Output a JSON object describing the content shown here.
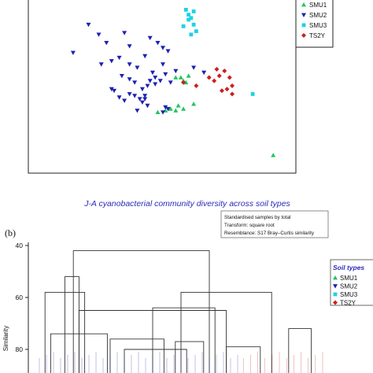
{
  "figure": {
    "background": "#ffffff"
  },
  "chart_data": [
    {
      "type": "scatter",
      "panel_label": "",
      "legend": [
        {
          "name": "SMU1",
          "marker": "triangle-up",
          "color": "#22c55e"
        },
        {
          "name": "SMU2",
          "marker": "triangle-down",
          "color": "#1e22b0"
        },
        {
          "name": "SMU3",
          "marker": "square",
          "color": "#19d3e6"
        },
        {
          "name": "TS2Y",
          "marker": "diamond",
          "color": "#cc1f1f"
        }
      ],
      "grid": false,
      "xlim": [
        0,
        100
      ],
      "ylim": [
        0,
        100
      ],
      "series": [
        {
          "name": "SMU1",
          "points": [
            [
              55,
              55
            ],
            [
              57,
              55
            ],
            [
              58,
              53
            ],
            [
              59,
              52
            ],
            [
              60,
              56
            ],
            [
              48,
              34
            ],
            [
              53,
              36
            ],
            [
              55,
              35
            ],
            [
              56,
              38
            ],
            [
              58,
              36
            ],
            [
              62,
              39
            ],
            [
              51,
              35
            ],
            [
              93,
              8
            ]
          ]
        },
        {
          "name": "SMU2",
          "points": [
            [
              21,
              87
            ],
            [
              25,
              81
            ],
            [
              28,
              76
            ],
            [
              33,
              67
            ],
            [
              35,
              82
            ],
            [
              37,
              74
            ],
            [
              15,
              70
            ],
            [
              26,
              63
            ],
            [
              30,
              65
            ],
            [
              37,
              63
            ],
            [
              40,
              61
            ],
            [
              43,
              68
            ],
            [
              45,
              79
            ],
            [
              46,
              58
            ],
            [
              48,
              76
            ],
            [
              50,
              73
            ],
            [
              52,
              71
            ],
            [
              50,
              63
            ],
            [
              34,
              56
            ],
            [
              37,
              54
            ],
            [
              39,
              52
            ],
            [
              42,
              48
            ],
            [
              43,
              44
            ],
            [
              43,
              42
            ],
            [
              44,
              50
            ],
            [
              45,
              53
            ],
            [
              47,
              51
            ],
            [
              30,
              48
            ],
            [
              31,
              47
            ],
            [
              33,
              43
            ],
            [
              35,
              41
            ],
            [
              37,
              45
            ],
            [
              39,
              44
            ],
            [
              41,
              42
            ],
            [
              42,
              40
            ],
            [
              44,
              38
            ],
            [
              47,
              55
            ],
            [
              49,
              53
            ],
            [
              51,
              57
            ],
            [
              53,
              52
            ],
            [
              40,
              35
            ],
            [
              51,
              37
            ],
            [
              52,
              36
            ],
            [
              50,
              34
            ],
            [
              55,
              59
            ],
            [
              62,
              61
            ],
            [
              66,
              58
            ]
          ]
        },
        {
          "name": "SMU3",
          "points": [
            [
              59,
              96
            ],
            [
              60,
              93
            ],
            [
              61,
              91
            ],
            [
              60,
              90
            ],
            [
              58,
              86
            ],
            [
              62,
              87
            ],
            [
              63,
              83
            ],
            [
              61,
              81
            ],
            [
              85,
              45
            ],
            [
              62,
              95
            ]
          ]
        },
        {
          "name": "TS2Y",
          "points": [
            [
              58,
              52
            ],
            [
              63,
              50
            ],
            [
              68,
              55
            ],
            [
              70,
              53
            ],
            [
              71,
              60
            ],
            [
              72,
              56
            ],
            [
              74,
              59
            ],
            [
              76,
              55
            ],
            [
              75,
              48
            ],
            [
              77,
              50
            ],
            [
              77,
              45
            ],
            [
              73,
              47
            ]
          ]
        }
      ]
    },
    {
      "type": "dendrogram",
      "title": "J-A cyanobacterial community diversity across soil types",
      "panel_label": "(b)",
      "notes": [
        "Standardised samples by total",
        "Transform: square root",
        "Resemblance: S17 Bray–Curtis similarity"
      ],
      "ylabel": "Similarity",
      "yticks": [
        40,
        60,
        80
      ],
      "ylim": [
        40,
        90
      ],
      "legend_title": "Soil types",
      "legend": [
        {
          "name": "SMU1",
          "marker": "triangle-up",
          "color": "#22c55e"
        },
        {
          "name": "SMU2",
          "marker": "triangle-down",
          "color": "#1e22b0"
        },
        {
          "name": "SMU3",
          "marker": "square",
          "color": "#19d3e6"
        },
        {
          "name": "TS2Y",
          "marker": "diamond",
          "color": "#cc1f1f"
        }
      ],
      "merges": [
        {
          "x1": 12,
          "x2": 60,
          "y": 42
        },
        {
          "x1": 9,
          "x2": 14,
          "y": 52
        },
        {
          "x1": 2,
          "x2": 16,
          "y": 58
        },
        {
          "x1": 50,
          "x2": 82,
          "y": 58
        },
        {
          "x1": 40,
          "x2": 62,
          "y": 64
        },
        {
          "x1": 14,
          "x2": 66,
          "y": 65
        },
        {
          "x1": 88,
          "x2": 96,
          "y": 72
        },
        {
          "x1": 4,
          "x2": 24,
          "y": 74
        },
        {
          "x1": 25,
          "x2": 44,
          "y": 76
        },
        {
          "x1": 48,
          "x2": 58,
          "y": 77
        },
        {
          "x1": 66,
          "x2": 78,
          "y": 79
        },
        {
          "x1": 30,
          "x2": 52,
          "y": 80
        }
      ],
      "leaf_groups": [
        {
          "color": "#1e22b0",
          "x1": 0,
          "x2": 70
        },
        {
          "color": "#cc1f1f",
          "x1": 72,
          "x2": 100
        }
      ]
    }
  ]
}
